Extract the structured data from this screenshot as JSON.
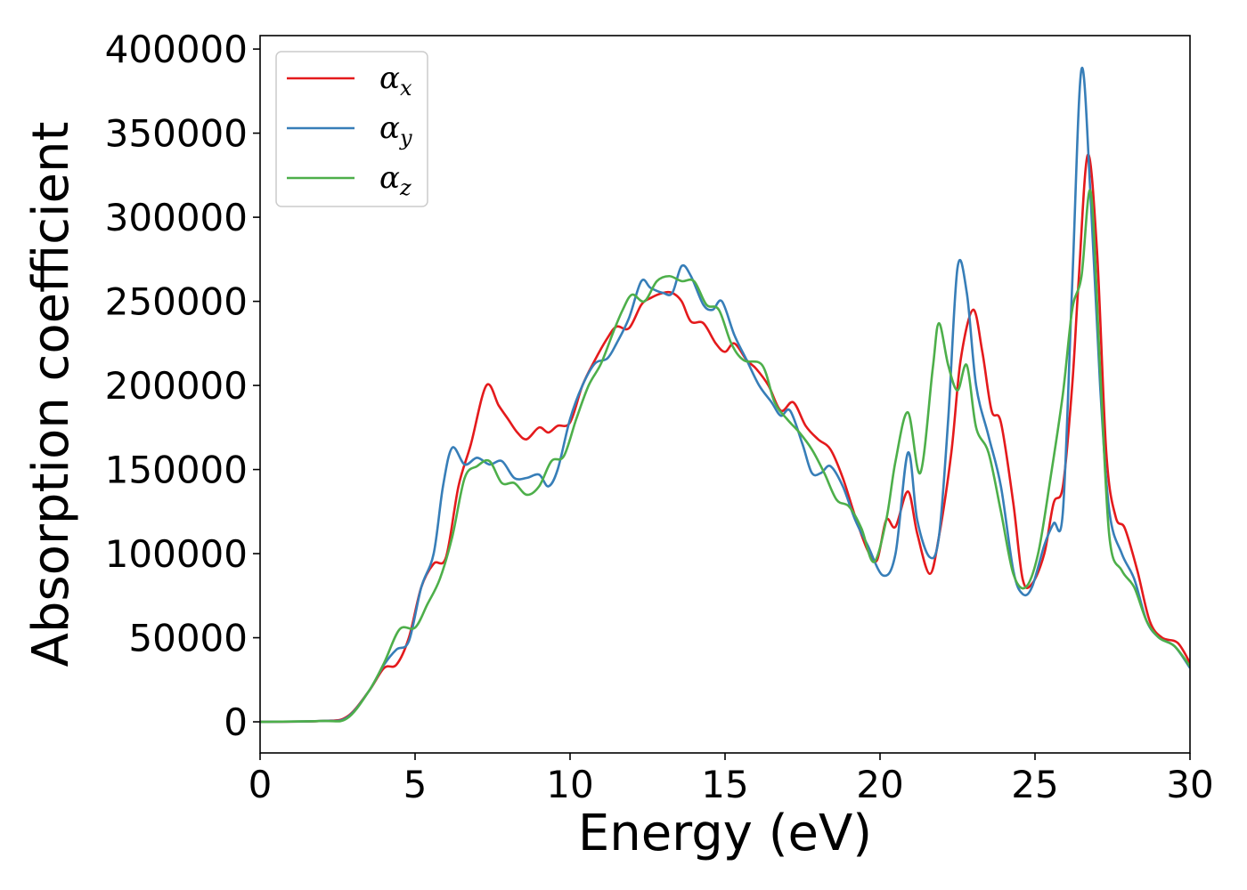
{
  "chart_data": {
    "type": "line",
    "title": "",
    "xlabel": "Energy (eV)",
    "ylabel": "Absorption coefficient",
    "xlim": [
      0,
      30
    ],
    "ylim": [
      -18500,
      408000
    ],
    "x_ticks": [
      0,
      5,
      10,
      15,
      20,
      25,
      30
    ],
    "x_tick_labels": [
      "0",
      "5",
      "10",
      "15",
      "20",
      "25",
      "30"
    ],
    "y_ticks": [
      0,
      50000,
      100000,
      150000,
      200000,
      250000,
      300000,
      350000,
      400000
    ],
    "y_tick_labels": [
      "0",
      "50000",
      "100000",
      "150000",
      "200000",
      "250000",
      "300000",
      "350000",
      "400000"
    ],
    "grid": false,
    "legend_position": "top-left",
    "series": [
      {
        "name": "αx",
        "symbol": "α",
        "subscript": "x",
        "color": "#e41a1c",
        "points": [
          [
            0,
            0
          ],
          [
            2,
            500
          ],
          [
            2.8,
            3000
          ],
          [
            3.5,
            18000
          ],
          [
            4,
            32000
          ],
          [
            4.4,
            34000
          ],
          [
            4.8,
            50000
          ],
          [
            5.2,
            80000
          ],
          [
            5.6,
            94000
          ],
          [
            6,
            98000
          ],
          [
            6.4,
            140000
          ],
          [
            6.8,
            165000
          ],
          [
            7.3,
            200000
          ],
          [
            7.7,
            188000
          ],
          [
            8,
            180000
          ],
          [
            8.3,
            172000
          ],
          [
            8.6,
            168000
          ],
          [
            9,
            175000
          ],
          [
            9.3,
            172000
          ],
          [
            9.6,
            176000
          ],
          [
            10,
            178000
          ],
          [
            10.4,
            200000
          ],
          [
            10.8,
            215000
          ],
          [
            11.2,
            228000
          ],
          [
            11.5,
            235000
          ],
          [
            11.9,
            234000
          ],
          [
            12.3,
            248000
          ],
          [
            12.6,
            252000
          ],
          [
            13,
            255000
          ],
          [
            13.3,
            255000
          ],
          [
            13.6,
            250000
          ],
          [
            13.9,
            238000
          ],
          [
            14.3,
            237000
          ],
          [
            14.7,
            225000
          ],
          [
            15,
            220000
          ],
          [
            15.3,
            225000
          ],
          [
            15.7,
            215000
          ],
          [
            16,
            210000
          ],
          [
            16.4,
            200000
          ],
          [
            16.8,
            185000
          ],
          [
            17.2,
            190000
          ],
          [
            17.6,
            176000
          ],
          [
            18,
            168000
          ],
          [
            18.4,
            162000
          ],
          [
            18.8,
            145000
          ],
          [
            19.2,
            122000
          ],
          [
            19.6,
            102000
          ],
          [
            19.9,
            96000
          ],
          [
            20.2,
            120000
          ],
          [
            20.5,
            116000
          ],
          [
            20.9,
            137000
          ],
          [
            21.2,
            112000
          ],
          [
            21.6,
            88000
          ],
          [
            21.9,
            110000
          ],
          [
            22.3,
            160000
          ],
          [
            22.6,
            215000
          ],
          [
            23,
            245000
          ],
          [
            23.3,
            220000
          ],
          [
            23.6,
            185000
          ],
          [
            23.9,
            178000
          ],
          [
            24.3,
            130000
          ],
          [
            24.6,
            85000
          ],
          [
            24.9,
            82000
          ],
          [
            25.3,
            100000
          ],
          [
            25.6,
            130000
          ],
          [
            25.9,
            140000
          ],
          [
            26.2,
            200000
          ],
          [
            26.4,
            260000
          ],
          [
            26.7,
            337000
          ],
          [
            27,
            280000
          ],
          [
            27.3,
            160000
          ],
          [
            27.6,
            122000
          ],
          [
            27.9,
            115000
          ],
          [
            28.3,
            90000
          ],
          [
            28.7,
            60000
          ],
          [
            29.1,
            50000
          ],
          [
            29.6,
            47000
          ],
          [
            30,
            35000
          ]
        ]
      },
      {
        "name": "αy",
        "symbol": "α",
        "subscript": "y",
        "color": "#377eb8",
        "points": [
          [
            0,
            0
          ],
          [
            2,
            500
          ],
          [
            2.8,
            2500
          ],
          [
            3.5,
            18000
          ],
          [
            4,
            34000
          ],
          [
            4.4,
            43000
          ],
          [
            4.8,
            48000
          ],
          [
            5.2,
            80000
          ],
          [
            5.6,
            100000
          ],
          [
            5.9,
            140000
          ],
          [
            6.2,
            163000
          ],
          [
            6.6,
            153000
          ],
          [
            7,
            157000
          ],
          [
            7.4,
            153000
          ],
          [
            7.8,
            155000
          ],
          [
            8.2,
            145000
          ],
          [
            8.6,
            145000
          ],
          [
            9,
            147000
          ],
          [
            9.3,
            140000
          ],
          [
            9.6,
            150000
          ],
          [
            10,
            180000
          ],
          [
            10.4,
            200000
          ],
          [
            10.8,
            213000
          ],
          [
            11.2,
            216000
          ],
          [
            11.5,
            225000
          ],
          [
            11.9,
            240000
          ],
          [
            12.3,
            262000
          ],
          [
            12.6,
            258000
          ],
          [
            13,
            255000
          ],
          [
            13.3,
            255000
          ],
          [
            13.6,
            271000
          ],
          [
            13.9,
            265000
          ],
          [
            14.3,
            248000
          ],
          [
            14.6,
            245000
          ],
          [
            14.9,
            250000
          ],
          [
            15.3,
            230000
          ],
          [
            15.7,
            215000
          ],
          [
            16.1,
            200000
          ],
          [
            16.5,
            190000
          ],
          [
            16.8,
            182000
          ],
          [
            17.1,
            185000
          ],
          [
            17.5,
            165000
          ],
          [
            17.8,
            148000
          ],
          [
            18.1,
            148000
          ],
          [
            18.4,
            152000
          ],
          [
            18.8,
            140000
          ],
          [
            19.2,
            120000
          ],
          [
            19.6,
            105000
          ],
          [
            20.1,
            87000
          ],
          [
            20.5,
            100000
          ],
          [
            20.9,
            160000
          ],
          [
            21.2,
            120000
          ],
          [
            21.6,
            98000
          ],
          [
            21.9,
            110000
          ],
          [
            22.2,
            180000
          ],
          [
            22.5,
            270000
          ],
          [
            22.8,
            255000
          ],
          [
            23.1,
            200000
          ],
          [
            23.5,
            170000
          ],
          [
            23.9,
            140000
          ],
          [
            24.3,
            90000
          ],
          [
            24.6,
            76000
          ],
          [
            24.9,
            80000
          ],
          [
            25.3,
            105000
          ],
          [
            25.6,
            118000
          ],
          [
            25.9,
            125000
          ],
          [
            26.2,
            260000
          ],
          [
            26.5,
            388000
          ],
          [
            26.8,
            310000
          ],
          [
            27.1,
            200000
          ],
          [
            27.4,
            125000
          ],
          [
            27.8,
            100000
          ],
          [
            28.2,
            85000
          ],
          [
            28.6,
            60000
          ],
          [
            29,
            50000
          ],
          [
            29.5,
            45000
          ],
          [
            30,
            32000
          ]
        ]
      },
      {
        "name": "αz",
        "symbol": "α",
        "subscript": "z",
        "color": "#4daf4a",
        "points": [
          [
            0,
            0
          ],
          [
            2,
            500
          ],
          [
            2.8,
            2000
          ],
          [
            3.5,
            18000
          ],
          [
            4,
            35000
          ],
          [
            4.5,
            55000
          ],
          [
            5,
            56000
          ],
          [
            5.4,
            70000
          ],
          [
            5.8,
            85000
          ],
          [
            6.2,
            110000
          ],
          [
            6.6,
            145000
          ],
          [
            7,
            152000
          ],
          [
            7.4,
            155000
          ],
          [
            7.8,
            142000
          ],
          [
            8.2,
            142000
          ],
          [
            8.6,
            135000
          ],
          [
            9,
            140000
          ],
          [
            9.4,
            155000
          ],
          [
            9.8,
            158000
          ],
          [
            10.2,
            180000
          ],
          [
            10.6,
            200000
          ],
          [
            11,
            213000
          ],
          [
            11.4,
            232000
          ],
          [
            11.7,
            245000
          ],
          [
            12,
            254000
          ],
          [
            12.4,
            250000
          ],
          [
            12.8,
            262000
          ],
          [
            13.2,
            265000
          ],
          [
            13.6,
            262000
          ],
          [
            14,
            262000
          ],
          [
            14.4,
            248000
          ],
          [
            14.8,
            245000
          ],
          [
            15.2,
            225000
          ],
          [
            15.6,
            215000
          ],
          [
            16.2,
            212000
          ],
          [
            16.6,
            190000
          ],
          [
            17,
            180000
          ],
          [
            17.4,
            172000
          ],
          [
            17.8,
            162000
          ],
          [
            18.2,
            148000
          ],
          [
            18.6,
            132000
          ],
          [
            19,
            128000
          ],
          [
            19.4,
            115000
          ],
          [
            19.8,
            95000
          ],
          [
            20.2,
            120000
          ],
          [
            20.5,
            155000
          ],
          [
            20.9,
            184000
          ],
          [
            21.3,
            148000
          ],
          [
            21.7,
            210000
          ],
          [
            21.9,
            237000
          ],
          [
            22.2,
            212000
          ],
          [
            22.5,
            197000
          ],
          [
            22.8,
            212000
          ],
          [
            23.1,
            175000
          ],
          [
            23.5,
            160000
          ],
          [
            23.9,
            125000
          ],
          [
            24.3,
            88000
          ],
          [
            24.7,
            80000
          ],
          [
            25.1,
            100000
          ],
          [
            25.5,
            145000
          ],
          [
            25.9,
            195000
          ],
          [
            26.2,
            245000
          ],
          [
            26.5,
            265000
          ],
          [
            26.8,
            315000
          ],
          [
            27.1,
            210000
          ],
          [
            27.4,
            110000
          ],
          [
            27.8,
            90000
          ],
          [
            28.2,
            80000
          ],
          [
            28.6,
            60000
          ],
          [
            29,
            50000
          ],
          [
            29.5,
            45000
          ],
          [
            30,
            33000
          ]
        ]
      }
    ]
  }
}
